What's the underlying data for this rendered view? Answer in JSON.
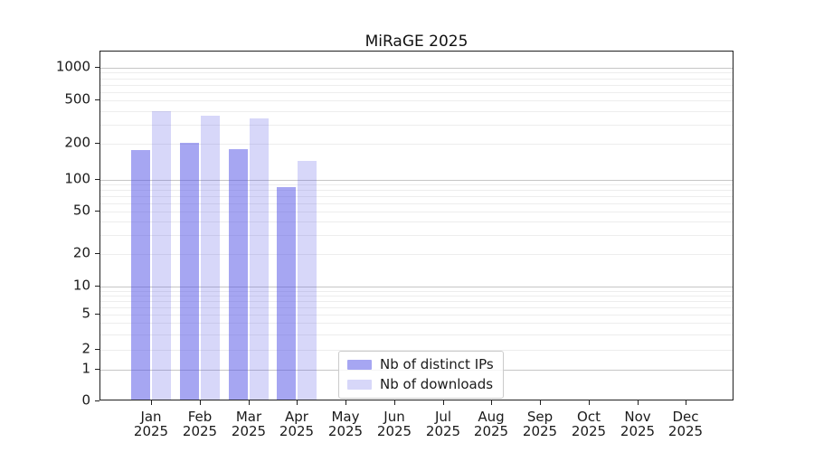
{
  "chart_data": {
    "type": "bar",
    "title": "MiRaGE 2025",
    "categories": [
      "Jan",
      "Feb",
      "Mar",
      "Apr",
      "May",
      "Jun",
      "Jul",
      "Aug",
      "Sep",
      "Oct",
      "Nov",
      "Dec"
    ],
    "year_label": "2025",
    "series": [
      {
        "name": "Nb of distinct IPs",
        "color": "rgba(80,80,230,0.51)",
        "values": [
          170,
          195,
          173,
          82,
          null,
          null,
          null,
          null,
          null,
          null,
          null,
          null
        ]
      },
      {
        "name": "Nb of downloads",
        "color": "rgba(80,80,230,0.23)",
        "values": [
          385,
          350,
          330,
          140,
          null,
          null,
          null,
          null,
          null,
          null,
          null,
          null
        ]
      }
    ],
    "xlabel": "",
    "ylabel": "",
    "yscale": "symlog",
    "y_ticks": [
      0,
      1,
      2,
      5,
      10,
      20,
      50,
      100,
      200,
      500,
      1000
    ],
    "ylim": [
      0,
      1400
    ],
    "grid": "horizontal major and minor gridlines",
    "legend_position": "lower center inside plot",
    "colors": {
      "major_grid": "#c6c6c6",
      "minor_grid": "#ededed",
      "spine": "#1f1f1f",
      "background": "#ffffff"
    }
  }
}
